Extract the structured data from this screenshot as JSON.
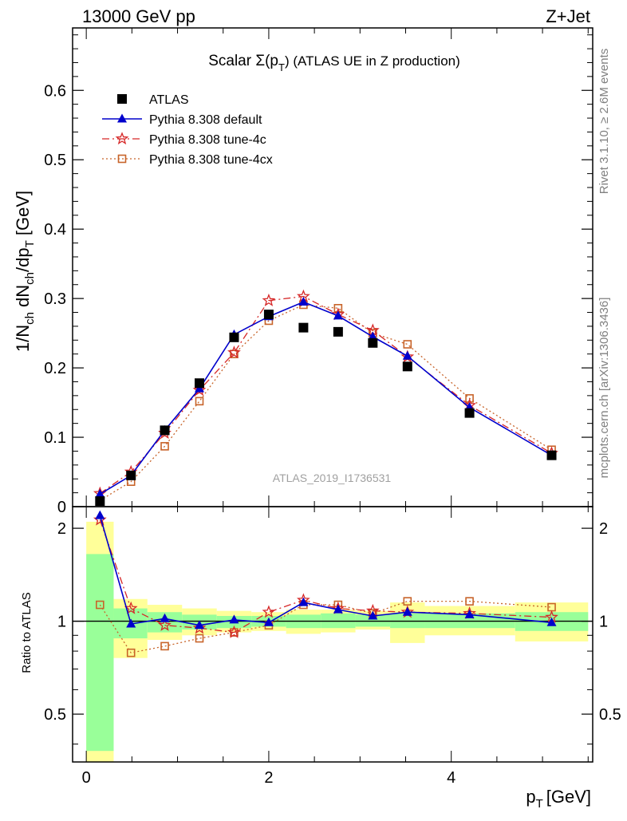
{
  "header": {
    "left": "13000 GeV pp",
    "right": "Z+Jet"
  },
  "side_labels": {
    "rivet": "Rivet 3.1.10, ≥ 2.6M events",
    "mcplots": "mcplots.cern.ch [arXiv:1306.3436]"
  },
  "watermark": "ATLAS_2019_I1736531",
  "colors": {
    "atlas": "#000000",
    "default": "#0000cc",
    "tune4c": "#d62828",
    "tune4cx": "#c8642a",
    "band_green": "#99ff99",
    "band_yellow": "#ffff99"
  },
  "legend": [
    {
      "key": "atlas",
      "label": "ATLAS",
      "marker": "square",
      "line": "none"
    },
    {
      "key": "default",
      "label": "Pythia 8.308 default",
      "marker": "triangle",
      "line": "solid"
    },
    {
      "key": "tune4c",
      "label": "Pythia 8.308 tune-4c",
      "marker": "star",
      "line": "dashdot"
    },
    {
      "key": "tune4cx",
      "label": "Pythia 8.308 tune-4cx",
      "marker": "open-square",
      "line": "dotted"
    }
  ],
  "chart_data": [
    {
      "type": "scatter",
      "panel": "main",
      "title": "Scalar Σ(p_T) (ATLAS UE in Z production)",
      "title_main": "Scalar Σ(p",
      "title_sub": "T",
      "title_rest": ") (ATLAS UE in Z production)",
      "ylabel": "1/N_ch dN_ch/dp_T [GeV]",
      "xlim": [
        -0.15,
        5.55
      ],
      "ylim": [
        0,
        0.69
      ],
      "yticks": [
        0,
        0.1,
        0.2,
        0.3,
        0.4,
        0.5,
        0.6
      ],
      "ytick_labels": [
        "0",
        "0.1",
        "0.2",
        "0.3",
        "0.4",
        "0.5",
        "0.6"
      ],
      "legend_position": "top-left",
      "x": [
        0.15,
        0.49,
        0.86,
        1.24,
        1.62,
        2.0,
        2.38,
        2.76,
        3.14,
        3.52,
        4.2,
        5.1
      ],
      "bin_edges": [
        0,
        0.3,
        0.67,
        1.05,
        1.43,
        1.81,
        2.19,
        2.57,
        2.95,
        3.33,
        3.71,
        4.7,
        5.5
      ],
      "series": [
        {
          "key": "atlas",
          "name": "ATLAS",
          "values": [
            0.008,
            0.045,
            0.11,
            0.178,
            0.244,
            0.277,
            0.258,
            0.252,
            0.236,
            0.202,
            0.135,
            0.074
          ]
        },
        {
          "key": "default",
          "name": "Pythia 8.308 default",
          "values": [
            0.018,
            0.045,
            0.11,
            0.17,
            0.248,
            0.274,
            0.295,
            0.275,
            0.245,
            0.217,
            0.143,
            0.074
          ]
        },
        {
          "key": "tune4c",
          "name": "Pythia 8.308 tune-4c",
          "values": [
            0.019,
            0.05,
            0.106,
            0.168,
            0.222,
            0.297,
            0.303,
            0.277,
            0.254,
            0.216,
            0.146,
            0.077
          ]
        },
        {
          "key": "tune4cx",
          "name": "Pythia 8.308 tune-4cx",
          "values": [
            0.009,
            0.036,
            0.087,
            0.152,
            0.22,
            0.268,
            0.291,
            0.286,
            0.25,
            0.234,
            0.156,
            0.082
          ]
        }
      ]
    },
    {
      "type": "scatter",
      "panel": "ratio",
      "xlabel": "p_T [GeV]",
      "xlabel_main": "p",
      "xlabel_sub": "T",
      "xlabel_unit": "[GeV]",
      "ylabel": "Ratio to ATLAS",
      "ylim": [
        0.35,
        2.35
      ],
      "yticks": [
        0.5,
        1,
        2
      ],
      "ytick_labels": [
        "0.5",
        "1",
        "2"
      ],
      "xticks": [
        0,
        2,
        4
      ],
      "xtick_labels": [
        "0",
        "2",
        "4"
      ],
      "reference": 1,
      "x": [
        0.15,
        0.49,
        0.86,
        1.24,
        1.62,
        2.0,
        2.38,
        2.76,
        3.14,
        3.52,
        4.2,
        5.1
      ],
      "bin_edges": [
        0,
        0.3,
        0.67,
        1.05,
        1.43,
        1.81,
        2.19,
        2.57,
        2.95,
        3.33,
        3.71,
        4.7,
        5.5
      ],
      "band_green": [
        [
          0.38,
          1.65
        ],
        [
          0.88,
          1.1
        ],
        [
          0.92,
          1.07
        ],
        [
          0.94,
          1.05
        ],
        [
          0.95,
          1.04
        ],
        [
          0.96,
          1.04
        ],
        [
          0.95,
          1.05
        ],
        [
          0.95,
          1.06
        ],
        [
          0.96,
          1.05
        ],
        [
          0.95,
          1.06
        ],
        [
          0.95,
          1.06
        ],
        [
          0.93,
          1.07
        ]
      ],
      "band_yellow": [
        [
          0.35,
          2.1
        ],
        [
          0.76,
          1.18
        ],
        [
          0.87,
          1.13
        ],
        [
          0.9,
          1.1
        ],
        [
          0.92,
          1.08
        ],
        [
          0.93,
          1.07
        ],
        [
          0.91,
          1.09
        ],
        [
          0.92,
          1.09
        ],
        [
          0.94,
          1.08
        ],
        [
          0.85,
          1.15
        ],
        [
          0.9,
          1.12
        ],
        [
          0.86,
          1.15
        ]
      ],
      "series": [
        {
          "key": "default",
          "name": "Pythia 8.308 default",
          "values": [
            2.2,
            0.98,
            1.02,
            0.97,
            1.01,
            0.99,
            1.15,
            1.09,
            1.04,
            1.07,
            1.05,
            0.99
          ]
        },
        {
          "key": "tune4c",
          "name": "Pythia 8.308 tune-4c",
          "values": [
            2.13,
            1.1,
            0.97,
            0.95,
            0.92,
            1.07,
            1.17,
            1.1,
            1.08,
            1.07,
            1.06,
            1.03
          ]
        },
        {
          "key": "tune4cx",
          "name": "Pythia 8.308 tune-4cx",
          "values": [
            1.13,
            0.79,
            0.83,
            0.88,
            0.92,
            0.97,
            1.13,
            1.13,
            1.06,
            1.16,
            1.16,
            1.11
          ]
        }
      ]
    }
  ]
}
